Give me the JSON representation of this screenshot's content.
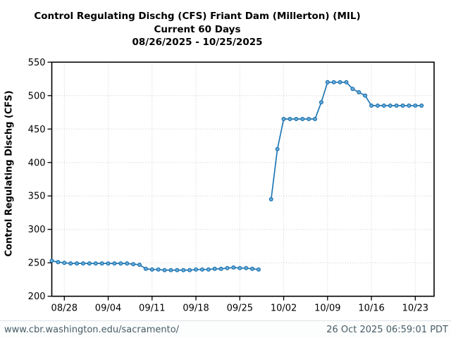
{
  "chart_data": {
    "type": "line",
    "title": "Control Regulating Dischg (CFS) Friant Dam (Millerton) (MIL)",
    "subtitle": "Current 60 Days",
    "date_range": "08/26/2025 - 10/25/2025",
    "ylabel": "Control Regulating Dischg (CFS)",
    "xlabel": "",
    "ylim": [
      200,
      550
    ],
    "y_ticks": [
      200,
      250,
      300,
      350,
      400,
      450,
      500,
      550
    ],
    "x_tick_labels": [
      "08/28",
      "09/04",
      "09/11",
      "09/18",
      "09/25",
      "10/02",
      "10/09",
      "10/16",
      "10/23"
    ],
    "grid": "dotted",
    "legend": "none",
    "line_color": "#1f77b4",
    "marker_edge_color": "#1a6faf",
    "marker_fill_color": "#6aaed6",
    "series": [
      {
        "date": "08/26",
        "value": 253
      },
      {
        "date": "08/27",
        "value": 251
      },
      {
        "date": "08/28",
        "value": 250
      },
      {
        "date": "08/29",
        "value": 249
      },
      {
        "date": "08/30",
        "value": 249
      },
      {
        "date": "08/31",
        "value": 249
      },
      {
        "date": "09/01",
        "value": 249
      },
      {
        "date": "09/02",
        "value": 249
      },
      {
        "date": "09/03",
        "value": 249
      },
      {
        "date": "09/04",
        "value": 249
      },
      {
        "date": "09/05",
        "value": 249
      },
      {
        "date": "09/06",
        "value": 249
      },
      {
        "date": "09/07",
        "value": 249
      },
      {
        "date": "09/08",
        "value": 248
      },
      {
        "date": "09/09",
        "value": 247
      },
      {
        "date": "09/10",
        "value": 241
      },
      {
        "date": "09/11",
        "value": 240
      },
      {
        "date": "09/12",
        "value": 240
      },
      {
        "date": "09/13",
        "value": 239
      },
      {
        "date": "09/14",
        "value": 239
      },
      {
        "date": "09/15",
        "value": 239
      },
      {
        "date": "09/16",
        "value": 239
      },
      {
        "date": "09/17",
        "value": 239
      },
      {
        "date": "09/18",
        "value": 240
      },
      {
        "date": "09/19",
        "value": 240
      },
      {
        "date": "09/20",
        "value": 240
      },
      {
        "date": "09/21",
        "value": 241
      },
      {
        "date": "09/22",
        "value": 241
      },
      {
        "date": "09/23",
        "value": 242
      },
      {
        "date": "09/24",
        "value": 243
      },
      {
        "date": "09/25",
        "value": 242
      },
      {
        "date": "09/26",
        "value": 242
      },
      {
        "date": "09/27",
        "value": 241
      },
      {
        "date": "09/28",
        "value": 240
      },
      {
        "date": "09/29",
        "value": null
      },
      {
        "date": "09/30",
        "value": 345
      },
      {
        "date": "10/01",
        "value": 420
      },
      {
        "date": "10/02",
        "value": 465
      },
      {
        "date": "10/03",
        "value": 465
      },
      {
        "date": "10/04",
        "value": 465
      },
      {
        "date": "10/05",
        "value": 465
      },
      {
        "date": "10/06",
        "value": 465
      },
      {
        "date": "10/07",
        "value": 465
      },
      {
        "date": "10/08",
        "value": 490
      },
      {
        "date": "10/09",
        "value": 520
      },
      {
        "date": "10/10",
        "value": 520
      },
      {
        "date": "10/11",
        "value": 520
      },
      {
        "date": "10/12",
        "value": 520
      },
      {
        "date": "10/13",
        "value": 510
      },
      {
        "date": "10/14",
        "value": 505
      },
      {
        "date": "10/15",
        "value": 500
      },
      {
        "date": "10/16",
        "value": 485
      },
      {
        "date": "10/17",
        "value": 485
      },
      {
        "date": "10/18",
        "value": 485
      },
      {
        "date": "10/19",
        "value": 485
      },
      {
        "date": "10/20",
        "value": 485
      },
      {
        "date": "10/21",
        "value": 485
      },
      {
        "date": "10/22",
        "value": 485
      },
      {
        "date": "10/23",
        "value": 485
      },
      {
        "date": "10/24",
        "value": 485
      }
    ]
  },
  "footer": {
    "url": "www.cbr.washington.edu/sacramento/",
    "timestamp": "26 Oct 2025 06:59:01 PDT"
  }
}
